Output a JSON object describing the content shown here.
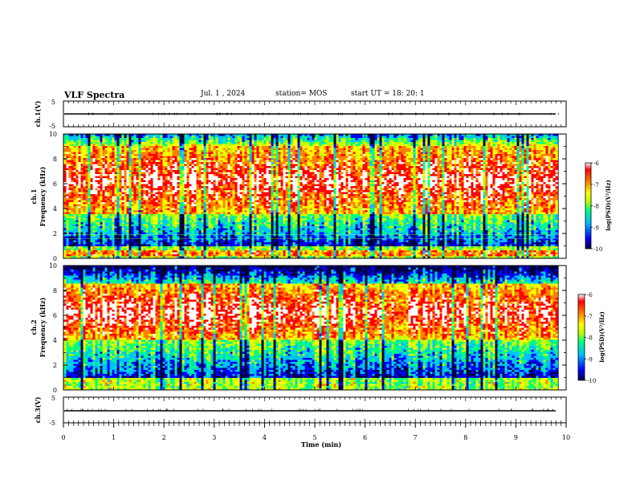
{
  "header": {
    "title": "VLF Spectra",
    "date": "Jul.  1  , 2024",
    "station": "station= MOS",
    "start_ut": "start  UT  =   18: 20: 1"
  },
  "colors": {
    "scale": [
      "#000040",
      "#0000ff",
      "#00c0ff",
      "#00ff80",
      "#c0ff00",
      "#ffff00",
      "#ff8000",
      "#ff0000",
      "#ffffff"
    ]
  },
  "chart_data": [
    {
      "type": "line",
      "panel": "ch1-waveform",
      "ylabel": "ch.1(V)",
      "yticks": [
        "5",
        "-5"
      ],
      "ylim": [
        -5,
        5
      ],
      "xlim": [
        0,
        10
      ],
      "series": [
        {
          "values_level": 0
        }
      ]
    },
    {
      "type": "heatmap",
      "panel": "ch1-spectrogram",
      "ylabel": "ch.1\nFrequency (kHz)",
      "yticks": [
        "0",
        "2",
        "4",
        "6",
        "8",
        "10"
      ],
      "ylim": [
        0,
        10
      ],
      "xlim": [
        0,
        9.85
      ],
      "colorbar": {
        "label": "log(PSD)(V²/Hz)",
        "ticks": [
          "-6",
          "-7",
          "-8",
          "-9",
          "-10"
        ],
        "range": [
          -10,
          -6
        ]
      },
      "intensity_band_khz": [
        3.5,
        9.0
      ]
    },
    {
      "type": "heatmap",
      "panel": "ch2-spectrogram",
      "ylabel": "ch.2\nFrequency (kHz)",
      "yticks": [
        "0",
        "2",
        "4",
        "6",
        "8",
        "10"
      ],
      "ylim": [
        0,
        10
      ],
      "xlim": [
        0,
        9.85
      ],
      "colorbar": {
        "label": "log(PSD)(V²/Hz)",
        "ticks": [
          "-6",
          "-7",
          "-8",
          "-9",
          "-10"
        ],
        "range": [
          -10,
          -6
        ]
      },
      "intensity_band_khz": [
        4.0,
        8.5
      ]
    },
    {
      "type": "line",
      "panel": "ch3-waveform",
      "ylabel": "ch.3(V)",
      "yticks": [
        "5",
        "-5"
      ],
      "ylim": [
        -5,
        5
      ],
      "xlim": [
        0,
        10
      ],
      "series": [
        {
          "values_level": 0
        }
      ]
    }
  ],
  "xaxis": {
    "label": "Time  (min)",
    "ticks": [
      "0",
      "1",
      "2",
      "3",
      "4",
      "5",
      "6",
      "7",
      "8",
      "9",
      "10"
    ]
  },
  "ylabels": {
    "ch1_wave": "ch.1(V)",
    "ch1_spec_a": "ch.1",
    "ch1_spec_b": "Frequency (kHz)",
    "ch2_spec_a": "ch.2",
    "ch2_spec_b": "Frequency (kHz)",
    "ch3_wave": "ch.3(V)",
    "cbar": "log(PSD)(V²/Hz)"
  }
}
